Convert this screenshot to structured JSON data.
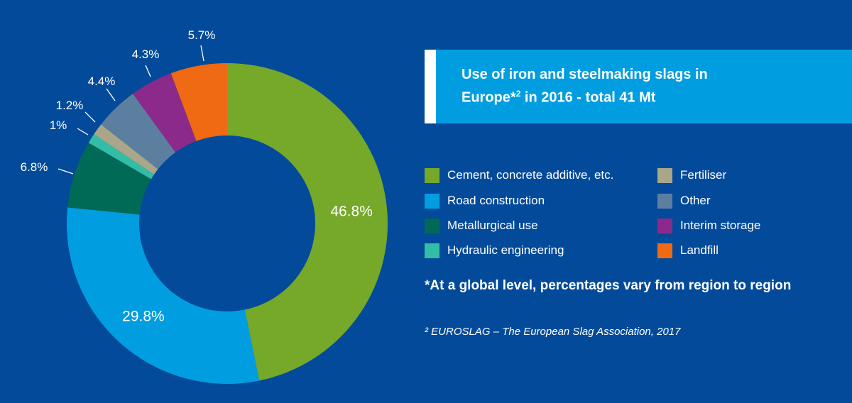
{
  "title": {
    "line1": "Use of iron and steelmaking slags in",
    "line2_a": "Europe*",
    "line2_sup": "2",
    "line2_b": " in 2016 - total 41 Mt"
  },
  "colors": {
    "background": "#034b9a",
    "title_box": "#009ee0",
    "title_bar": "#ffffff"
  },
  "chart_data": {
    "type": "pie",
    "variant": "donut",
    "start_angle_deg": 0,
    "direction": "clockwise",
    "slices": [
      {
        "name": "Cement, concrete additive, etc.",
        "value": 46.8,
        "label": "46.8%",
        "color": "#76a82a"
      },
      {
        "name": "Road construction",
        "value": 29.8,
        "label": "29.8%",
        "color": "#009ee0"
      },
      {
        "name": "Metallurgical use",
        "value": 6.8,
        "label": "6.8%",
        "color": "#006a56"
      },
      {
        "name": "Hydraulic engineering",
        "value": 1.0,
        "label": "1%",
        "color": "#33bca6"
      },
      {
        "name": "Fertiliser",
        "value": 1.2,
        "label": "1.2%",
        "color": "#aaa68a"
      },
      {
        "name": "Other",
        "value": 4.4,
        "label": "4.4%",
        "color": "#5c7f9f"
      },
      {
        "name": "Interim storage",
        "value": 4.3,
        "label": "4.3%",
        "color": "#8b2a8a"
      },
      {
        "name": "Landfill",
        "value": 5.7,
        "label": "5.7%",
        "color": "#ef6a12"
      }
    ]
  },
  "legend": [
    {
      "label": "Cement, concrete additive, etc.",
      "color": "#76a82a"
    },
    {
      "label": "Road construction",
      "color": "#009ee0"
    },
    {
      "label": "Metallurgical use",
      "color": "#006a56"
    },
    {
      "label": "Hydraulic engineering",
      "color": "#33bca6"
    },
    {
      "label": "Fertiliser",
      "color": "#aaa68a"
    },
    {
      "label": "Other",
      "color": "#5c7f9f"
    },
    {
      "label": "Interim storage",
      "color": "#8b2a8a"
    },
    {
      "label": "Landfill",
      "color": "#ef6a12"
    }
  ],
  "note": "*At a global level, percentages vary from region to region",
  "source": "² EUROSLAG – The European Slag Association, 2017"
}
